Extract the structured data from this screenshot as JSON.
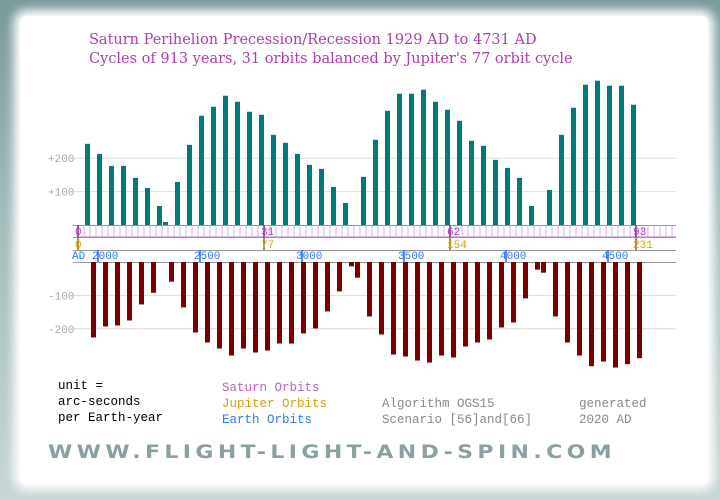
{
  "title": {
    "line1": "Saturn Perihelion Precession/Recession 1929 AD to 4731 AD",
    "line2": "Cycles of 913 years,  31 orbits balanced by Jupiter's 77 orbit cycle"
  },
  "legend": {
    "unit": [
      "unit =",
      "arc-seconds",
      "per Earth-year"
    ],
    "saturn": "Saturn Orbits",
    "jupiter": "Jupiter Orbits",
    "earth": "Earth Orbits",
    "algorithm": "Algorithm OGS15",
    "scenario": "Scenario [56]and[66]",
    "generated": [
      "generated",
      "2020 AD"
    ]
  },
  "footer": "WWW.FLIGHT-LIGHT-AND-SPIN.COM",
  "colors": {
    "positive": "#007a78",
    "negative": "#7a0000",
    "saturn": "#b040c0",
    "jupiter": "#d4a000",
    "earth": "#2a7aff",
    "title": "#b03cb0"
  },
  "chart_data": {
    "type": "bar",
    "title": "Saturn Perihelion Precession/Recession 1929 AD to 4731 AD",
    "ylabel": "arc-seconds per Earth-year",
    "y_ticks_positive": [
      "+100",
      "+200"
    ],
    "y_ticks_negative": [
      "-100",
      "-200"
    ],
    "x_unit": "Saturn orbits since 1929 AD",
    "saturn_ticks": [
      {
        "orbit": 0,
        "label": "0"
      },
      {
        "orbit": 31,
        "label": "31"
      },
      {
        "orbit": 62,
        "label": "62"
      },
      {
        "orbit": 93,
        "label": "93"
      }
    ],
    "jupiter_ticks": [
      {
        "orbit": 0,
        "label": "0"
      },
      {
        "orbit": 31,
        "label": "77"
      },
      {
        "orbit": 62,
        "label": "154"
      },
      {
        "orbit": 93,
        "label": "231"
      }
    ],
    "earth_prefix": "AD",
    "year_ticks": [
      {
        "year": 2000,
        "label": "2000"
      },
      {
        "year": 2500,
        "label": "2500"
      },
      {
        "year": 3000,
        "label": "3000"
      },
      {
        "year": 3500,
        "label": "3500"
      },
      {
        "year": 4000,
        "label": "4000"
      },
      {
        "year": 4500,
        "label": "4500"
      }
    ],
    "positive_series": {
      "name": "Precession",
      "x": [
        1,
        3,
        5,
        7,
        9,
        11,
        13,
        14,
        16,
        18,
        20,
        22,
        24,
        26,
        28,
        30,
        32,
        34,
        36,
        38,
        40,
        42,
        44,
        47,
        49,
        51,
        53,
        55,
        57,
        59,
        61,
        63,
        65,
        67,
        69,
        71,
        73,
        75,
        78,
        80,
        82,
        84,
        86,
        88,
        90,
        92
      ],
      "values": [
        243,
        213,
        177,
        177,
        141,
        111,
        57,
        9,
        129,
        240,
        327,
        354,
        387,
        369,
        339,
        330,
        270,
        246,
        213,
        180,
        168,
        114,
        66,
        144,
        255,
        342,
        393,
        393,
        405,
        369,
        345,
        312,
        252,
        237,
        195,
        171,
        141,
        57,
        105,
        270,
        351,
        420,
        432,
        417,
        417,
        360
      ]
    },
    "negative_series": {
      "name": "Recession",
      "x": [
        2,
        4,
        6,
        8,
        10,
        12,
        15,
        17,
        19,
        21,
        23,
        25,
        27,
        29,
        31,
        33,
        35,
        37,
        39,
        41,
        43,
        45,
        46,
        48,
        50,
        52,
        54,
        56,
        58,
        60,
        62,
        64,
        66,
        68,
        70,
        72,
        74,
        76,
        77,
        79,
        81,
        83,
        85,
        87,
        89,
        91,
        93
      ],
      "values": [
        -226,
        -193,
        -190,
        -175,
        -127,
        -92,
        -59,
        -136,
        -211,
        -241,
        -259,
        -280,
        -259,
        -271,
        -265,
        -244,
        -244,
        -214,
        -199,
        -148,
        -88,
        -13,
        -47,
        -163,
        -217,
        -277,
        -283,
        -295,
        -301,
        -280,
        -286,
        -253,
        -241,
        -232,
        -196,
        -181,
        -109,
        -23,
        -32,
        -163,
        -241,
        -280,
        -312,
        -298,
        -316,
        -306,
        -288
      ]
    }
  }
}
